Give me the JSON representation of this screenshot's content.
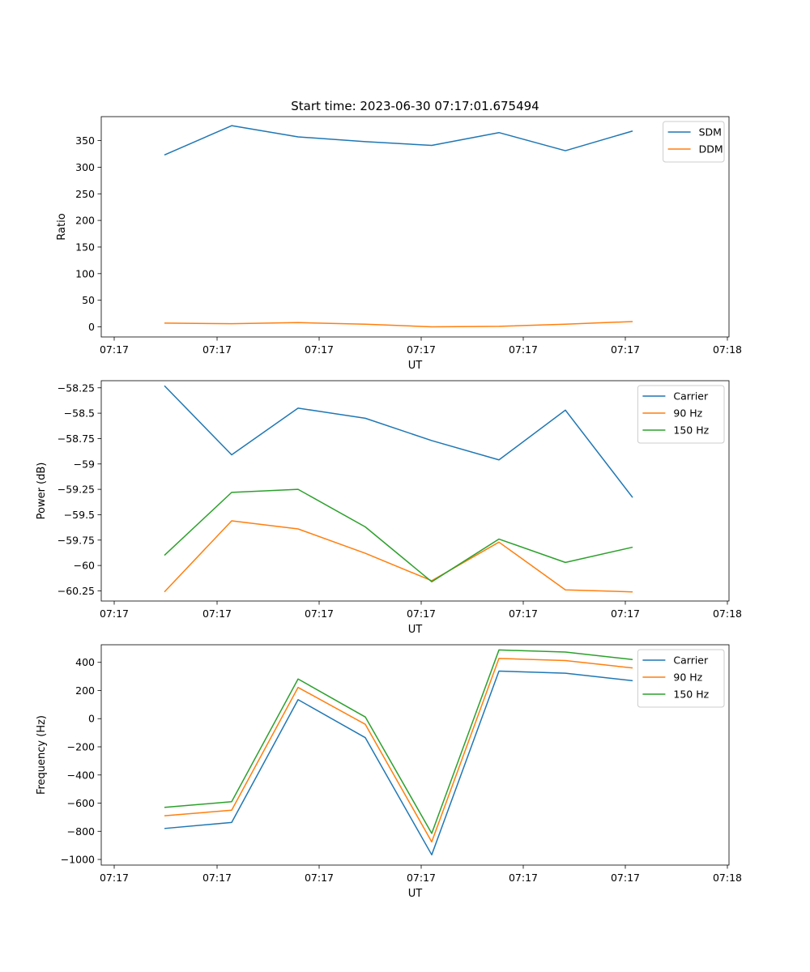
{
  "title": "Start time: 2023-06-30 07:17:01.675494",
  "colors": {
    "blue": "#1f77b4",
    "orange": "#ff7f0e",
    "green": "#2ca02c"
  },
  "chart_data": [
    {
      "type": "line",
      "xlabel": "UT",
      "ylabel": "Ratio",
      "x_tick_labels": [
        "07:17",
        "07:17",
        "07:17",
        "07:17",
        "07:17",
        "07:17",
        "07:18"
      ],
      "ylim": [
        -19,
        395
      ],
      "y_ticks": [
        0,
        50,
        100,
        150,
        200,
        250,
        300,
        350
      ],
      "legend_location": "top-right",
      "series": [
        {
          "name": "SDM",
          "color": "#1f77b4",
          "values": [
            323,
            378,
            357,
            348,
            341,
            365,
            331,
            368
          ]
        },
        {
          "name": "DDM",
          "color": "#ff7f0e",
          "values": [
            7,
            6,
            8,
            5,
            0,
            1,
            5,
            10
          ]
        }
      ]
    },
    {
      "type": "line",
      "xlabel": "UT",
      "ylabel": "Power (dB)",
      "x_tick_labels": [
        "07:17",
        "07:17",
        "07:17",
        "07:17",
        "07:17",
        "07:17",
        "07:18"
      ],
      "ylim": [
        -60.35,
        -58.18
      ],
      "y_ticks": [
        -60.25,
        -60.0,
        -59.75,
        -59.5,
        -59.25,
        -59.0,
        -58.75,
        -58.5,
        -58.25
      ],
      "legend_location": "top-right",
      "series": [
        {
          "name": "Carrier",
          "color": "#1f77b4",
          "values": [
            -58.23,
            -58.91,
            -58.45,
            -58.55,
            -58.77,
            -58.96,
            -58.47,
            -59.33
          ]
        },
        {
          "name": "90 Hz",
          "color": "#ff7f0e",
          "values": [
            -60.26,
            -59.56,
            -59.64,
            -59.88,
            -60.15,
            -59.77,
            -60.24,
            -60.26
          ]
        },
        {
          "name": "150 Hz",
          "color": "#2ca02c",
          "values": [
            -59.9,
            -59.28,
            -59.25,
            -59.62,
            -60.16,
            -59.74,
            -59.97,
            -59.82
          ]
        }
      ]
    },
    {
      "type": "line",
      "xlabel": "UT",
      "ylabel": "Frequency (Hz)",
      "x_tick_labels": [
        "07:17",
        "07:17",
        "07:17",
        "07:17",
        "07:17",
        "07:17",
        "07:18"
      ],
      "ylim": [
        -1040,
        525
      ],
      "y_ticks": [
        -1000,
        -800,
        -600,
        -400,
        -200,
        0,
        200,
        400
      ],
      "legend_location": "top-right",
      "series": [
        {
          "name": "Carrier",
          "color": "#1f77b4",
          "values": [
            -780,
            -737,
            135,
            -135,
            -967,
            338,
            323,
            270
          ]
        },
        {
          "name": "90 Hz",
          "color": "#ff7f0e",
          "values": [
            -690,
            -650,
            222,
            -40,
            -875,
            428,
            413,
            360
          ]
        },
        {
          "name": "150 Hz",
          "color": "#2ca02c",
          "values": [
            -630,
            -590,
            282,
            12,
            -815,
            488,
            473,
            420
          ]
        }
      ]
    }
  ]
}
